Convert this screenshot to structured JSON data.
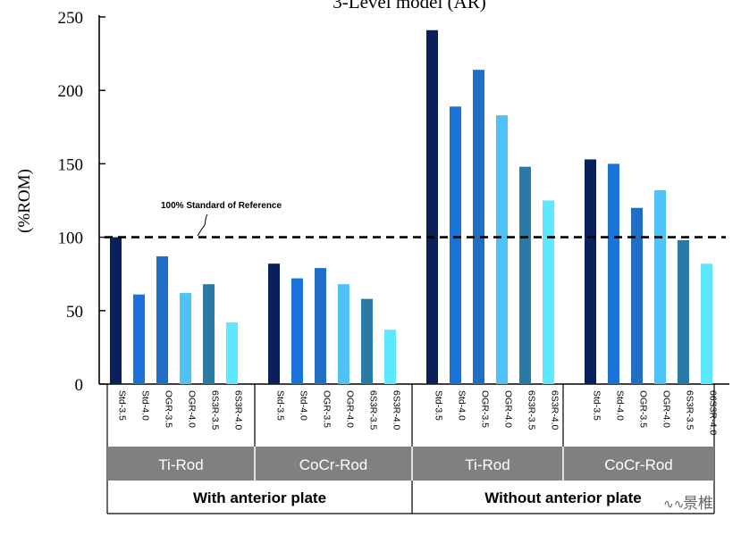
{
  "chart_data": {
    "type": "bar",
    "title": "3-Level model (AR)",
    "ylabel": "(%ROM)",
    "xlabel": "",
    "ylim": [
      0,
      250
    ],
    "yticks": [
      0,
      50,
      100,
      150,
      200,
      250
    ],
    "reference_line": {
      "value": 100,
      "label": "100% Standard of Reference"
    },
    "series_colors": [
      "#0a1f5c",
      "#1a73d9",
      "#1f6fc4",
      "#4fc3f7",
      "#2a7aa8",
      "#5ee8ff"
    ],
    "groups": [
      {
        "plate": "With anterior plate",
        "rod": "Ti-Rod",
        "categories": [
          "Std-3.5",
          "Std-4.0",
          "OGR-3.5",
          "OGR-4.0",
          "6S3R-3.5",
          "6S3R-4.0"
        ],
        "values": [
          100,
          61,
          87,
          62,
          68,
          42
        ]
      },
      {
        "plate": "With anterior plate",
        "rod": "CoCr-Rod",
        "categories": [
          "Std-3.5",
          "Std-4.0",
          "OGR-3.5",
          "OGR-4.0",
          "6S3R-3.5",
          "6S3R-4.0"
        ],
        "values": [
          82,
          72,
          79,
          68,
          58,
          37
        ]
      },
      {
        "plate": "Without anterior plate",
        "rod": "Ti-Rod",
        "categories": [
          "Std-3.5",
          "Std-4.0",
          "OGR-3.5",
          "OGR-4.0",
          "6S3R-3.5",
          "6S3R-4.0"
        ],
        "values": [
          241,
          189,
          214,
          183,
          148,
          125
        ]
      },
      {
        "plate": "Without anterior plate",
        "rod": "CoCr-Rod",
        "categories": [
          "Std-3.5",
          "Std-4.0",
          "OGR-3.5",
          "OGR-4.0",
          "6S3R-3.5",
          "66S3R-4.0"
        ],
        "values": [
          153,
          150,
          120,
          132,
          98,
          82
        ]
      }
    ],
    "plate_labels": [
      "With anterior plate",
      "Without anterior plate"
    ]
  },
  "watermark": {
    "text": "景椎"
  }
}
